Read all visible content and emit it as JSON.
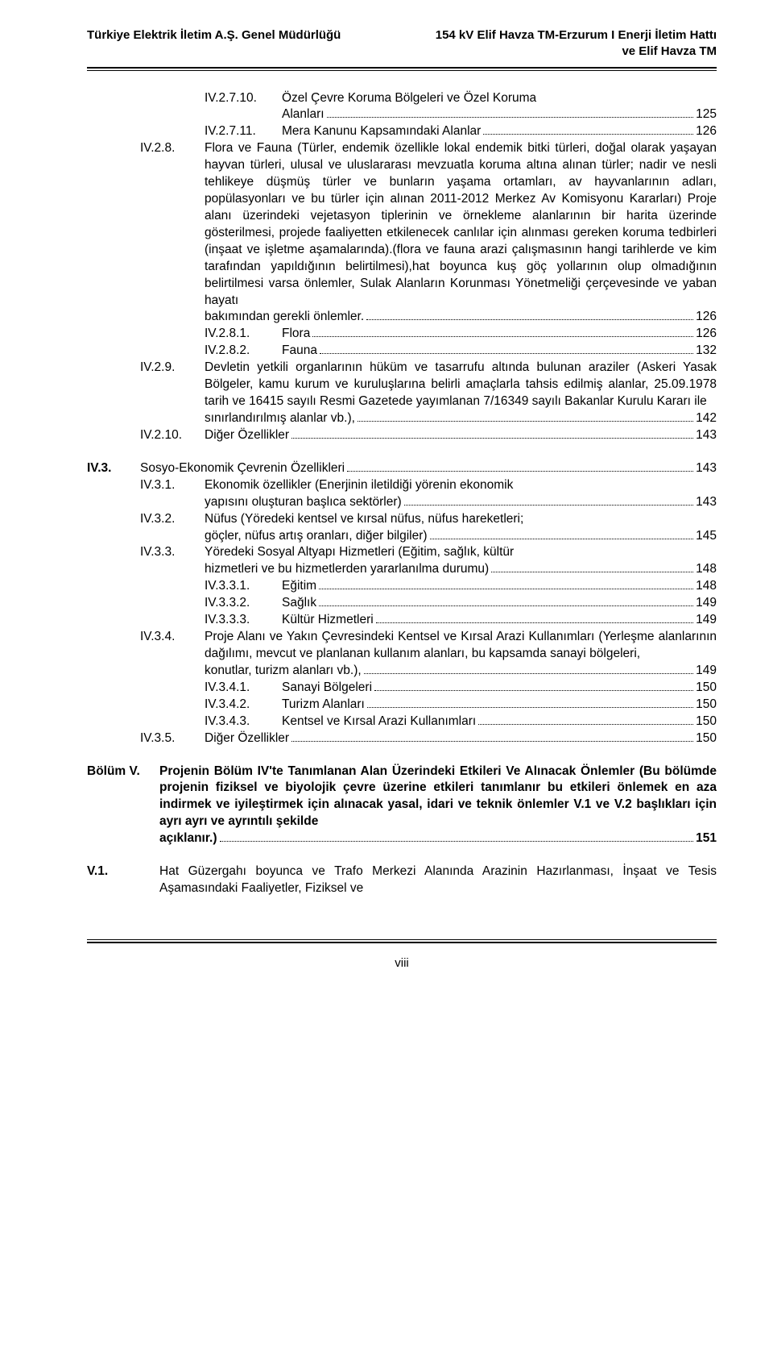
{
  "header": {
    "left": "Türkiye Elektrik İletim A.Ş. Genel Müdürlüğü",
    "right_line1": "154 kV Elif Havza TM-Erzurum I Enerji İletim Hattı",
    "right_line2": "ve Elif Havza TM"
  },
  "footer": {
    "page": "viii"
  },
  "e": {
    "iv2710_num": "IV.2.7.10.",
    "iv2710_l1": "Özel Çevre Koruma Bölgeleri ve Özel Koruma",
    "iv2710_last": "Alanları",
    "iv2710_pg": "125",
    "iv2711_num": "IV.2.7.11.",
    "iv2711_last": "Mera Kanunu Kapsamındaki Alanlar",
    "iv2711_pg": "126",
    "iv28_num": "IV.2.8.",
    "iv28_body": "Flora ve Fauna (Türler, endemik özellikle lokal endemik bitki türleri, doğal olarak yaşayan hayvan türleri, ulusal ve uluslararası mevzuatla koruma altına alınan türler; nadir ve nesli tehlikeye düşmüş türler ve bunların yaşama ortamları, av hayvanlarının adları, popülasyonları ve bu türler için alınan 2011-2012 Merkez Av Komisyonu Kararları) Proje alanı üzerindeki vejetasyon tiplerinin ve örnekleme alanlarının bir harita üzerinde gösterilmesi, projede faaliyetten etkilenecek canlılar için alınması gereken koruma tedbirleri (inşaat ve işletme aşamalarında).(flora ve fauna arazi çalışmasının hangi tarihlerde ve kim tarafından yapıldığının belirtilmesi),hat boyunca kuş göç yollarının olup olmadığının belirtilmesi varsa önlemler, Sulak Alanların Korunması Yönetmeliği çerçevesinde ve yaban hayatı",
    "iv28_last": "bakımından gerekli önlemler.",
    "iv28_pg": "126",
    "iv281_num": "IV.2.8.1.",
    "iv281_last": "Flora",
    "iv281_pg": "126",
    "iv282_num": "IV.2.8.2.",
    "iv282_last": "Fauna",
    "iv282_pg": "132",
    "iv29_num": "IV.2.9.",
    "iv29_body": "Devletin yetkili organlarının hüküm ve tasarrufu altında bulunan araziler (Askeri Yasak Bölgeler, kamu kurum ve kuruluşlarına belirli amaçlarla tahsis edilmiş alanlar, 25.09.1978 tarih ve 16415 sayılı Resmi Gazetede yayımlanan 7/16349 sayılı Bakanlar Kurulu Kararı ile",
    "iv29_last": "sınırlandırılmış alanlar vb.),",
    "iv29_pg": "142",
    "iv210_num": "IV.2.10.",
    "iv210_last": "Diğer Özellikler",
    "iv210_pg": "143",
    "iv3_num": "IV.3.",
    "iv3_last": "Sosyo-Ekonomik Çevrenin Özellikleri",
    "iv3_pg": "143",
    "iv31_num": "IV.3.1.",
    "iv31_l1": "Ekonomik özellikler (Enerjinin iletildiği yörenin ekonomik",
    "iv31_last": "yapısını oluşturan başlıca sektörler)",
    "iv31_pg": "143",
    "iv32_num": "IV.3.2.",
    "iv32_l1": "Nüfus (Yöredeki kentsel ve kırsal nüfus, nüfus hareketleri;",
    "iv32_last": "göçler, nüfus artış oranları, diğer bilgiler)",
    "iv32_pg": "145",
    "iv33_num": "IV.3.3.",
    "iv33_l1": "Yöredeki Sosyal Altyapı Hizmetleri (Eğitim, sağlık, kültür",
    "iv33_last": "hizmetleri ve bu hizmetlerden yararlanılma durumu)",
    "iv33_pg": "148",
    "iv331_num": "IV.3.3.1.",
    "iv331_last": "Eğitim",
    "iv331_pg": "148",
    "iv332_num": "IV.3.3.2.",
    "iv332_last": "Sağlık",
    "iv332_pg": "149",
    "iv333_num": "IV.3.3.3.",
    "iv333_last": "Kültür Hizmetleri",
    "iv333_pg": "149",
    "iv34_num": "IV.3.4.",
    "iv34_body": "Proje Alanı ve Yakın Çevresindeki Kentsel ve Kırsal Arazi Kullanımları (Yerleşme alanlarının dağılımı, mevcut ve planlanan kullanım alanları, bu kapsamda sanayi bölgeleri,",
    "iv34_last": "konutlar, turizm alanları vb.),",
    "iv34_pg": "149",
    "iv341_num": "IV.3.4.1.",
    "iv341_last": "Sanayi Bölgeleri",
    "iv341_pg": "150",
    "iv342_num": "IV.3.4.2.",
    "iv342_last": "Turizm Alanları",
    "iv342_pg": "150",
    "iv343_num": "IV.3.4.3.",
    "iv343_last": "Kentsel ve Kırsal Arazi Kullanımları",
    "iv343_pg": "150",
    "iv35_num": "IV.3.5.",
    "iv35_last": "Diğer Özellikler",
    "iv35_pg": "150",
    "bv_num": "Bölüm V.",
    "bv_body": "Projenin Bölüm IV'te Tanımlanan Alan  Üzerindeki  Etkileri Ve Alınacak Önlemler (Bu bölümde projenin fiziksel ve biyolojik çevre üzerine etkileri tanımlanır bu etkileri önlemek en aza indirmek ve iyileştirmek için alınacak yasal, idari ve teknik önlemler V.1 ve V.2 başlıkları için ayrı ayrı ve ayrıntılı şekilde",
    "bv_last": "açıklanır.)",
    "bv_pg": "151",
    "v1_num": "V.1.",
    "v1_body": "Hat Güzergahı boyunca ve Trafo Merkezi Alanında Arazinin Hazırlanması, İnşaat ve Tesis Aşamasındaki Faaliyetler, Fiziksel ve"
  }
}
